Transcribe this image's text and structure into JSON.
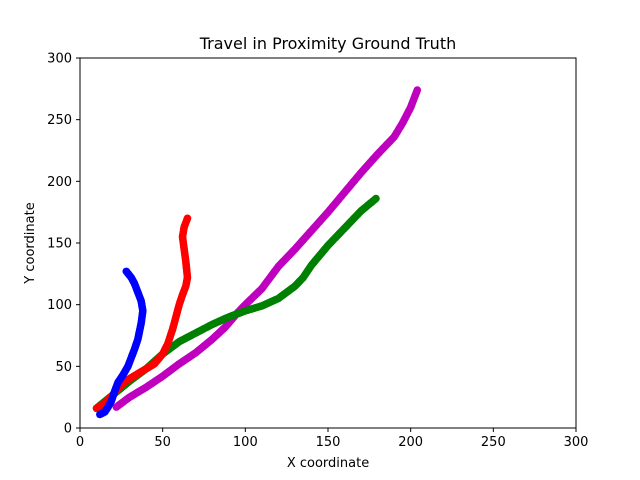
{
  "chart_data": {
    "type": "scatter",
    "title": "Travel in Proximity Ground Truth",
    "xlabel": "X coordinate",
    "ylabel": "Y coordinate",
    "xlim": [
      0,
      300
    ],
    "ylim": [
      0,
      300
    ],
    "xticks": [
      0,
      50,
      100,
      150,
      200,
      250,
      300
    ],
    "yticks": [
      0,
      50,
      100,
      150,
      200,
      250,
      300
    ],
    "grid": false,
    "legend": "none",
    "series": [
      {
        "color": "#bf00bf",
        "points": [
          [
            22,
            17
          ],
          [
            30,
            25
          ],
          [
            40,
            33
          ],
          [
            50,
            42
          ],
          [
            60,
            52
          ],
          [
            70,
            61
          ],
          [
            80,
            72
          ],
          [
            88,
            82
          ],
          [
            95,
            93
          ],
          [
            100,
            100
          ],
          [
            110,
            113
          ],
          [
            115,
            122
          ],
          [
            120,
            131
          ],
          [
            130,
            145
          ],
          [
            140,
            160
          ],
          [
            150,
            175
          ],
          [
            160,
            191
          ],
          [
            170,
            207
          ],
          [
            180,
            222
          ],
          [
            190,
            236
          ],
          [
            195,
            247
          ],
          [
            200,
            260
          ],
          [
            204,
            274
          ]
        ]
      },
      {
        "color": "#008000",
        "points": [
          [
            10,
            16
          ],
          [
            20,
            27
          ],
          [
            30,
            38
          ],
          [
            40,
            48
          ],
          [
            50,
            60
          ],
          [
            60,
            70
          ],
          [
            70,
            77
          ],
          [
            80,
            84
          ],
          [
            90,
            90
          ],
          [
            100,
            95
          ],
          [
            110,
            99
          ],
          [
            120,
            105
          ],
          [
            125,
            110
          ],
          [
            130,
            115
          ],
          [
            135,
            122
          ],
          [
            140,
            132
          ],
          [
            145,
            140
          ],
          [
            150,
            148
          ],
          [
            160,
            162
          ],
          [
            170,
            176
          ],
          [
            179,
            186
          ]
        ]
      },
      {
        "color": "#ff0000",
        "points": [
          [
            10,
            16
          ],
          [
            15,
            20
          ],
          [
            20,
            27
          ],
          [
            25,
            35
          ],
          [
            30,
            40
          ],
          [
            35,
            44
          ],
          [
            40,
            48
          ],
          [
            45,
            52
          ],
          [
            50,
            60
          ],
          [
            53,
            68
          ],
          [
            56,
            80
          ],
          [
            58,
            90
          ],
          [
            60,
            100
          ],
          [
            62,
            108
          ],
          [
            64,
            115
          ],
          [
            65,
            122
          ],
          [
            64,
            135
          ],
          [
            63,
            145
          ],
          [
            62,
            155
          ],
          [
            63,
            163
          ],
          [
            65,
            170
          ]
        ]
      },
      {
        "color": "#0000ff",
        "points": [
          [
            12,
            11
          ],
          [
            15,
            13
          ],
          [
            17,
            17
          ],
          [
            19,
            22
          ],
          [
            21,
            30
          ],
          [
            23,
            37
          ],
          [
            26,
            43
          ],
          [
            29,
            50
          ],
          [
            31,
            57
          ],
          [
            33,
            64
          ],
          [
            35,
            72
          ],
          [
            37,
            85
          ],
          [
            38,
            95
          ],
          [
            37,
            103
          ],
          [
            35,
            110
          ],
          [
            33,
            117
          ],
          [
            31,
            122
          ],
          [
            28,
            127
          ]
        ]
      }
    ]
  }
}
